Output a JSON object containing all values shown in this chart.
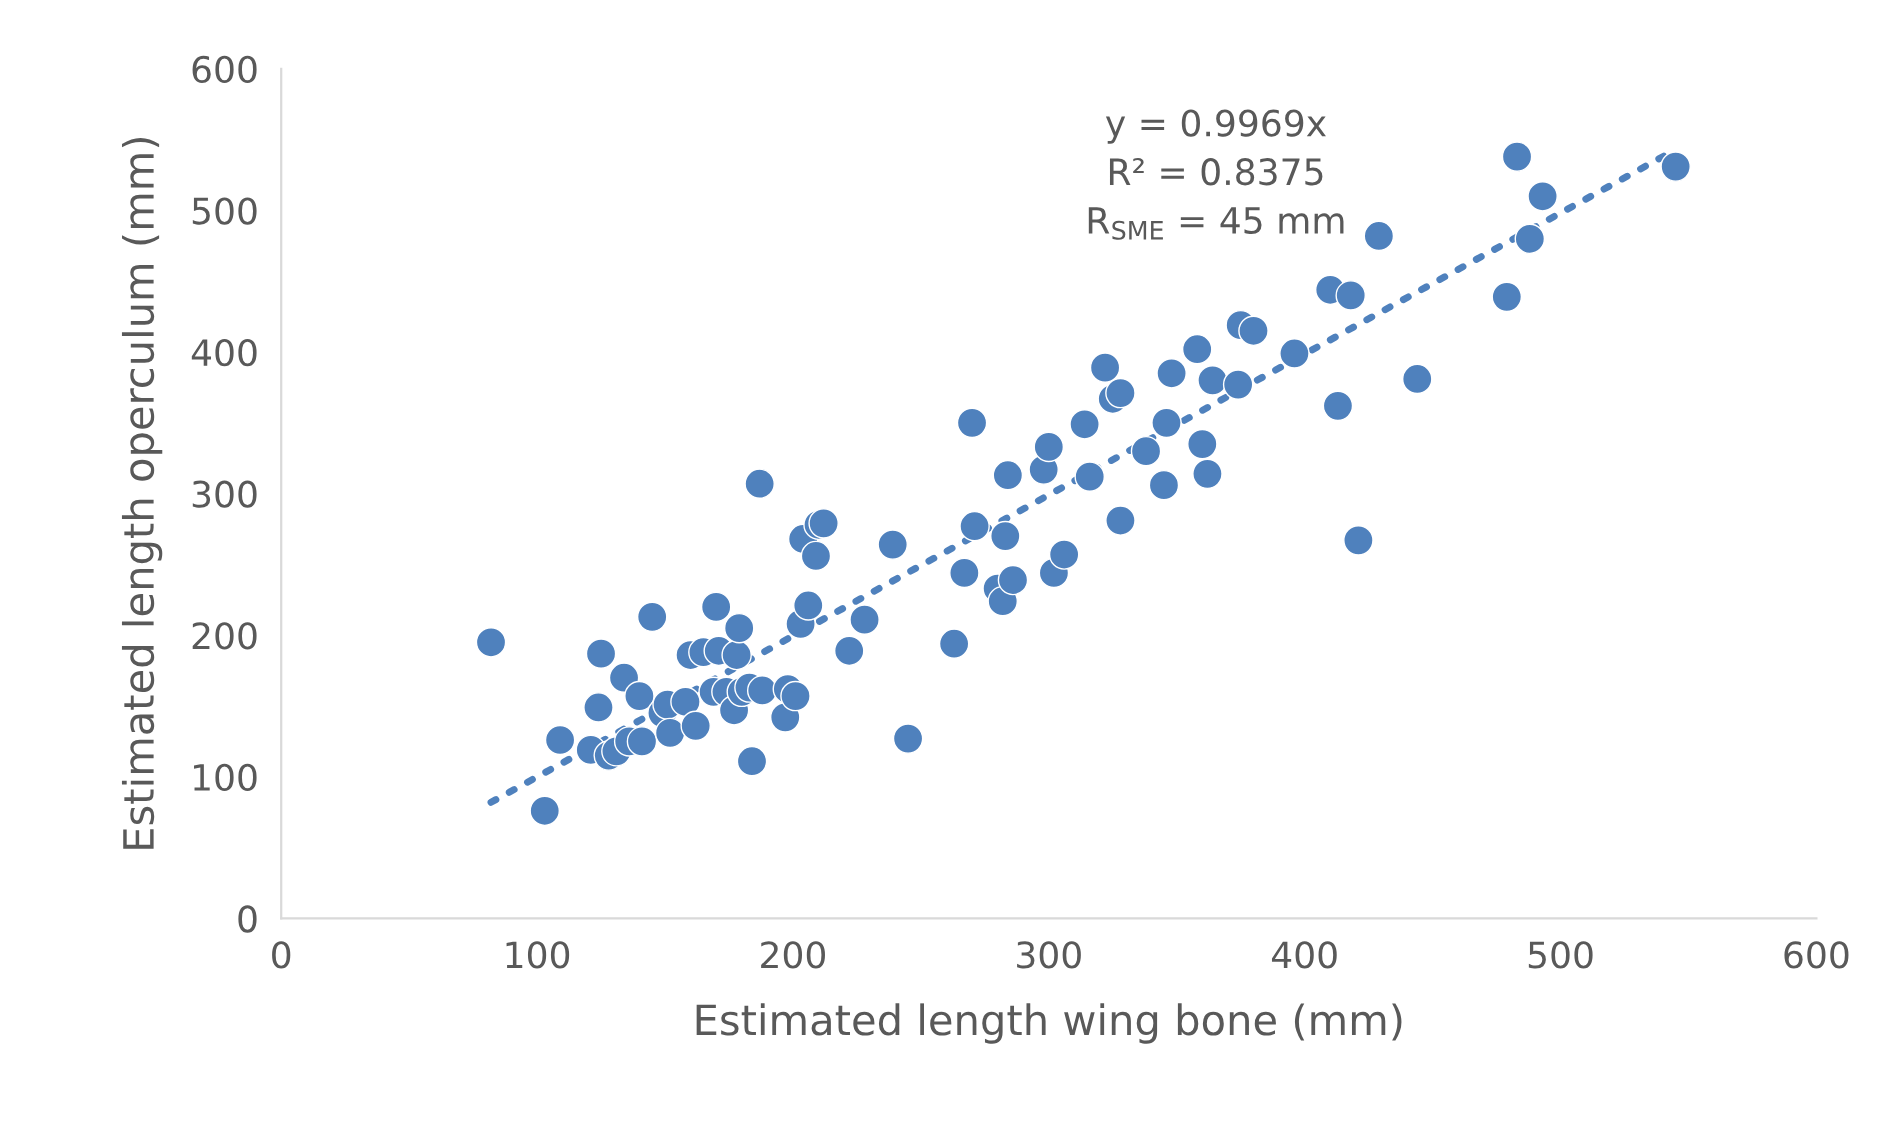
{
  "chart_data": {
    "type": "scatter",
    "xlabel": "Estimated length wing bone (mm)",
    "ylabel": "Estimated length operculum (mm)",
    "xlim": [
      0,
      600
    ],
    "ylim": [
      0,
      600
    ],
    "xticks": [
      0,
      100,
      200,
      300,
      400,
      500,
      600
    ],
    "yticks": [
      0,
      100,
      200,
      300,
      400,
      500,
      600
    ],
    "grid": false,
    "annotations": [
      "y = 0.9969x\nR² = 0.8375\nR$_{SME}$ = 45 mm"
    ],
    "series": [
      {
        "color": "#4f81bd",
        "marker": "circle",
        "x": [
          82,
          103,
          109,
          121,
          124,
          125,
          128,
          131,
          134,
          136,
          140,
          141,
          145,
          149,
          151,
          152,
          158,
          160,
          162,
          165,
          169,
          170,
          171,
          174,
          177,
          178,
          179,
          180,
          183,
          184,
          187,
          188,
          197,
          198,
          201,
          203,
          204,
          206,
          209,
          210,
          212,
          222,
          228,
          239,
          245,
          263,
          267,
          270,
          271,
          280,
          282,
          283,
          284,
          286,
          298,
          300,
          302,
          306,
          314,
          316,
          322,
          325,
          328,
          328,
          338,
          345,
          346,
          348,
          358,
          360,
          362,
          364,
          374,
          375,
          380,
          396,
          410,
          413,
          418,
          421,
          429,
          444,
          479,
          483,
          488,
          493,
          545
        ],
        "values": [
          195,
          76,
          126,
          119,
          149,
          187,
          115,
          118,
          170,
          125,
          157,
          125,
          213,
          145,
          151,
          131,
          153,
          186,
          136,
          188,
          160,
          220,
          189,
          160,
          147,
          186,
          205,
          160,
          163,
          111,
          307,
          161,
          142,
          162,
          157,
          208,
          268,
          221,
          256,
          278,
          279,
          189,
          211,
          264,
          127,
          194,
          244,
          350,
          277,
          233,
          224,
          270,
          313,
          239,
          317,
          333,
          244,
          257,
          349,
          312,
          389,
          367,
          371,
          281,
          330,
          306,
          350,
          385,
          402,
          335,
          314,
          380,
          377,
          419,
          415,
          399,
          444,
          362,
          440,
          267,
          482,
          381,
          439,
          538,
          480,
          510,
          531
        ]
      },
      {
        "type": "line",
        "color": "#4f81bd",
        "line_style": "dotted",
        "x": [
          82,
          545
        ],
        "values": [
          82,
          543
        ]
      }
    ]
  }
}
